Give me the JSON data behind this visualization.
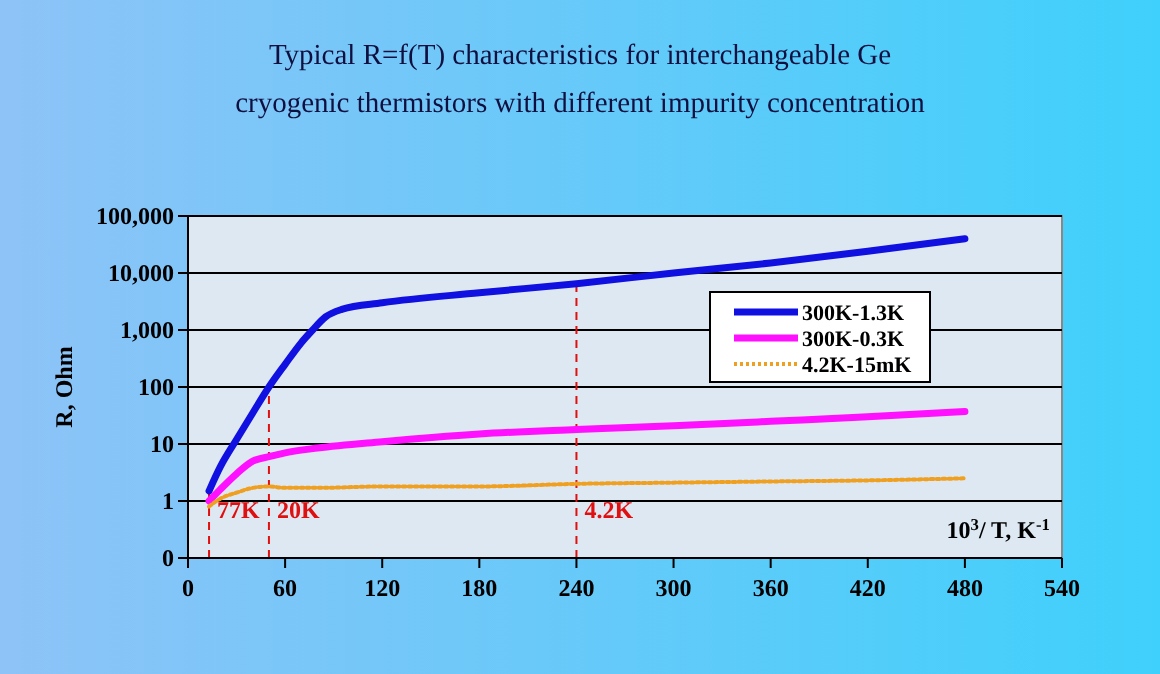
{
  "chart_data": {
    "type": "line",
    "title": "Typical R=f(T) characteristics for interchangeable Ge cryogenic thermistors with different impurity concentration",
    "xlabel": "10$^{3}$/ T, K$^{-1}$",
    "ylabel": "R, Ohm",
    "xlim": [
      0,
      540
    ],
    "xticks": [
      0,
      60,
      120,
      180,
      240,
      300,
      360,
      420,
      480,
      540
    ],
    "ylim": [
      0.1,
      100000
    ],
    "yticks": [
      {
        "value": 0.1,
        "label": "0"
      },
      1,
      10,
      100,
      {
        "value": 1000,
        "label": "1,000"
      },
      {
        "value": 10000,
        "label": "10,000"
      },
      {
        "value": 100000,
        "label": "100,000"
      }
    ],
    "log": "y",
    "grid": "y",
    "legend": "right",
    "series": [
      {
        "name": "300K-1.3K",
        "color": "#1010e0",
        "line_style": "solid",
        "x": [
          13,
          20,
          30,
          40,
          50,
          60,
          70,
          77,
          85,
          95,
          120,
          180,
          240,
          300,
          360,
          420,
          480
        ],
        "values": [
          1.5,
          4,
          12,
          35,
          100,
          250,
          600,
          1000,
          1700,
          2300,
          3000,
          4500,
          6500,
          10000,
          15000,
          24000,
          40000
        ]
      },
      {
        "name": "300K-0.3K",
        "color": "#ff10ff",
        "line_style": "solid",
        "x": [
          13,
          20,
          30,
          40,
          50,
          60,
          80,
          120,
          180,
          240,
          300,
          360,
          420,
          480
        ],
        "values": [
          1,
          1.6,
          3,
          5,
          6,
          7,
          8.5,
          11,
          15,
          18,
          21,
          25,
          30,
          37
        ]
      },
      {
        "name": "4.2K-15mK",
        "color": "#f0a020",
        "line_style": "dotted",
        "x": [
          13,
          20,
          30,
          40,
          50,
          60,
          80,
          120,
          180,
          240,
          300,
          360,
          420,
          480
        ],
        "values": [
          0.8,
          1.1,
          1.4,
          1.7,
          1.8,
          1.7,
          1.7,
          1.8,
          1.8,
          2,
          2.1,
          2.2,
          2.3,
          2.5
        ]
      }
    ],
    "ref_lines": [
      {
        "axis": "x",
        "value": 13,
        "label": "77K",
        "color": "#e01010",
        "line_style": "dashed"
      },
      {
        "axis": "x",
        "value": 50,
        "label": "20K",
        "color": "#e01010",
        "line_style": "dashed"
      },
      {
        "axis": "x",
        "value": 240,
        "label": "4.2K",
        "color": "#e01010",
        "line_style": "dashed"
      }
    ]
  }
}
